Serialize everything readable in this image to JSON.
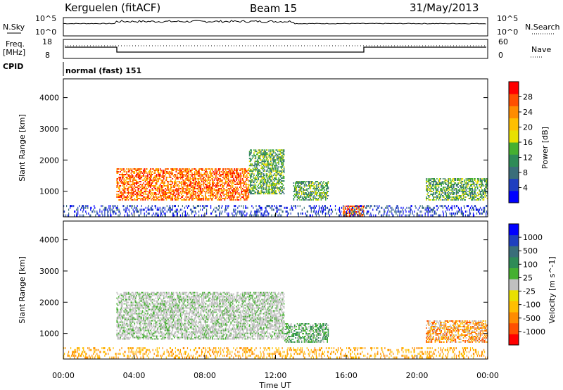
{
  "header": {
    "station": "Kerguelen (fitACF)",
    "beam": "Beam 15",
    "date": "31/May/2013"
  },
  "strips": {
    "nsky_label": "N.Sky",
    "nsky_tick_hi": "10^5",
    "nsky_tick_lo": "10^0",
    "nsearch_label": "N.Search",
    "freq_label_1": "Freq.",
    "freq_label_2": "[MHz]",
    "freq_tick_hi": "18",
    "freq_tick_lo": "8",
    "nave_label": "Nave",
    "nave_tick_hi": "60",
    "nave_tick_lo": "0",
    "cpid_label": "CPID",
    "cpid_value": "normal (fast) 151"
  },
  "chart_data": [
    {
      "type": "heatmap",
      "title": "",
      "ylabel": "Slant Range [km]",
      "xlabel": "",
      "y_ticks": [
        1000,
        2000,
        3000,
        4000
      ],
      "ylim": [
        180,
        4600
      ],
      "x_ticks": [
        "00:00",
        "04:00",
        "08:00",
        "12:00",
        "16:00",
        "20:00",
        "00:00"
      ],
      "xlim_hours": [
        0,
        24
      ],
      "colorbar": {
        "label": "Power [dB]",
        "ticks": [
          "4",
          "8",
          "12",
          "16",
          "20",
          "24",
          "28"
        ],
        "colors": [
          "#0000ff",
          "#1f3fbf",
          "#3a6e7a",
          "#2e8b57",
          "#45b030",
          "#e8e000",
          "#ffbf00",
          "#ff8c00",
          "#ff5000",
          "#ff0000"
        ]
      },
      "regions": [
        {
          "t0": 3.0,
          "t1": 10.5,
          "r0": 700,
          "r1": 1700,
          "value": "high"
        },
        {
          "t0": 10.5,
          "t1": 12.5,
          "r0": 900,
          "r1": 2300,
          "value": "mid"
        },
        {
          "t0": 13.0,
          "t1": 15.0,
          "r0": 700,
          "r1": 1300,
          "value": "mid"
        },
        {
          "t0": 15.8,
          "t1": 17.0,
          "r0": 180,
          "r1": 500,
          "value": "high"
        },
        {
          "t0": 20.5,
          "t1": 24.0,
          "r0": 700,
          "r1": 1400,
          "value": "mid"
        }
      ]
    },
    {
      "type": "heatmap",
      "title": "",
      "ylabel": "Slant Range [km]",
      "xlabel": "Time UT",
      "y_ticks": [
        1000,
        2000,
        3000,
        4000
      ],
      "ylim": [
        180,
        4600
      ],
      "x_ticks": [
        "00:00",
        "04:00",
        "08:00",
        "12:00",
        "16:00",
        "20:00",
        "00:00"
      ],
      "xlim_hours": [
        0,
        24
      ],
      "colorbar": {
        "label": "Velocity [m s^-1]",
        "ticks": [
          "1000",
          "500",
          "100",
          "25",
          "-25",
          "-100",
          "-500",
          "-1000"
        ],
        "colors": [
          "#0000ff",
          "#1f3fbf",
          "#3a6e7a",
          "#2e8b57",
          "#45b030",
          "#c0c0c0",
          "#e8e000",
          "#ffbf00",
          "#ff8c00",
          "#ff5000",
          "#ff0000"
        ]
      },
      "regions": [
        {
          "t0": 3.0,
          "t1": 12.5,
          "r0": 800,
          "r1": 2300,
          "value": "ground-scatter"
        },
        {
          "t0": 12.5,
          "t1": 15.0,
          "r0": 700,
          "r1": 1300,
          "value": "positive"
        },
        {
          "t0": 20.5,
          "t1": 24.0,
          "r0": 700,
          "r1": 1400,
          "value": "negative"
        }
      ]
    }
  ]
}
